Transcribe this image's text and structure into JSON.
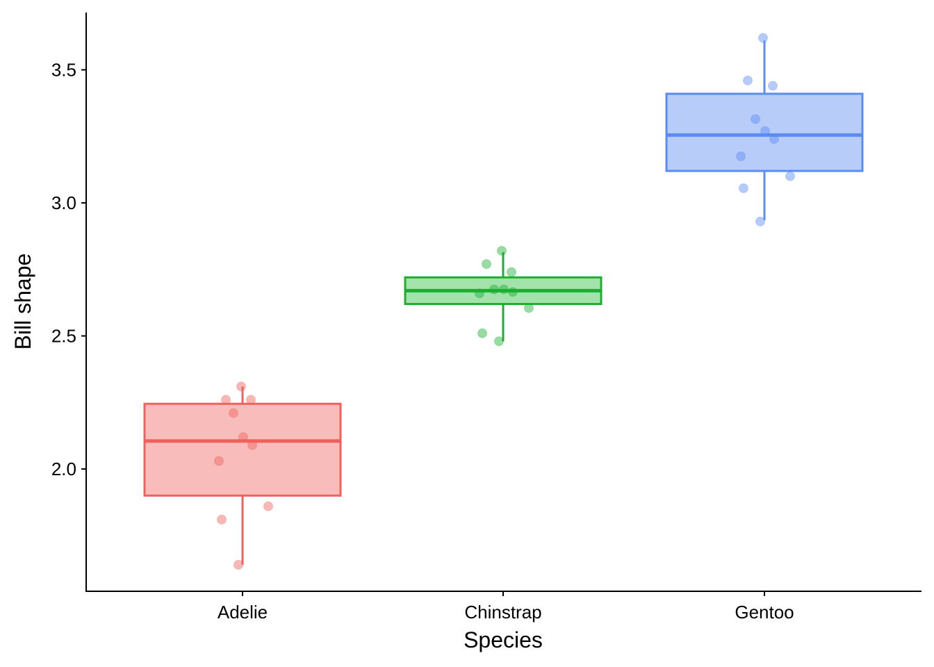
{
  "chart_data": {
    "type": "box",
    "xlabel": "Species",
    "ylabel": "Bill shape",
    "categories": [
      "Adelie",
      "Chinstrap",
      "Gentoo"
    ],
    "ylim": [
      1.55,
      3.72
    ],
    "yticks": [
      {
        "value": 2.0,
        "label": "2.0"
      },
      {
        "value": 2.5,
        "label": "2.5"
      },
      {
        "value": 3.0,
        "label": "3.0"
      },
      {
        "value": 3.5,
        "label": "3.5"
      }
    ],
    "grid": false,
    "legend": "none",
    "series": [
      {
        "category": "Adelie",
        "color": "#F0615D",
        "fill": "#F8BDBB",
        "box": {
          "min": 1.64,
          "q1": 1.9,
          "median": 2.105,
          "q3": 2.245,
          "max": 2.31
        },
        "points": [
          2.31,
          2.26,
          2.26,
          2.21,
          2.12,
          2.09,
          2.03,
          1.86,
          1.81,
          1.64
        ]
      },
      {
        "category": "Chinstrap",
        "color": "#1BAF32",
        "fill": "#A3E2AA",
        "box": {
          "min": 2.48,
          "q1": 2.62,
          "median": 2.67,
          "q3": 2.72,
          "max": 2.815
        },
        "points": [
          2.82,
          2.77,
          2.74,
          2.675,
          2.675,
          2.665,
          2.66,
          2.605,
          2.51,
          2.48
        ]
      },
      {
        "category": "Gentoo",
        "color": "#5A8CF6",
        "fill": "#B8CCFA",
        "box": {
          "min": 2.935,
          "q1": 3.12,
          "median": 3.255,
          "q3": 3.41,
          "max": 3.61
        },
        "points": [
          3.62,
          3.46,
          3.44,
          3.315,
          3.27,
          3.24,
          3.175,
          3.1,
          3.055,
          2.93
        ]
      }
    ]
  }
}
